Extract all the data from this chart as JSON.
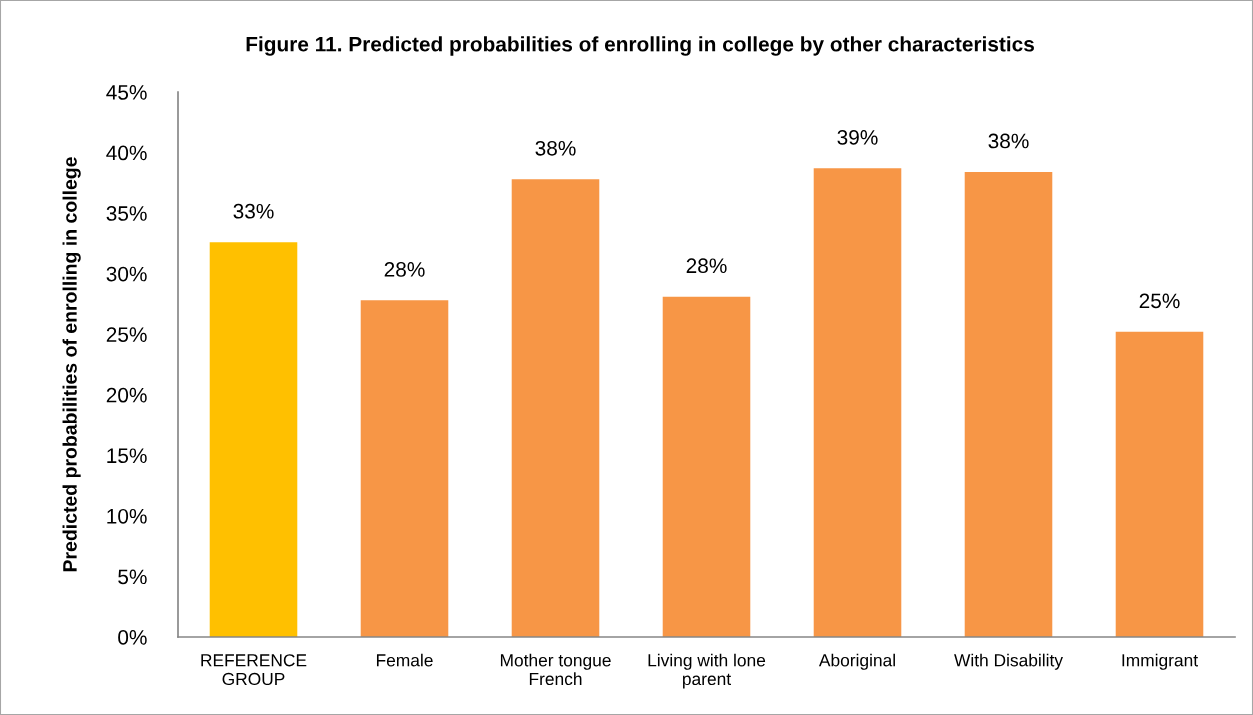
{
  "chart_data": {
    "type": "bar",
    "title": "Figure 11. Predicted probabilities of enrolling in college by other characteristics",
    "ylabel": "Predicted probabilities of enrolling in college",
    "categories": [
      "REFERENCE\nGROUP",
      "Female",
      "Mother tongue\nFrench",
      "Living with lone\nparent",
      "Aboriginal",
      "With Disability",
      "Immigrant"
    ],
    "values": [
      32.6,
      27.8,
      37.8,
      28.1,
      38.7,
      38.4,
      25.2
    ],
    "colors": [
      "#ffc000",
      "#f79646",
      "#f79646",
      "#f79646",
      "#f79646",
      "#f79646",
      "#f79646"
    ],
    "value_labels": [
      "33%",
      "28%",
      "38%",
      "28%",
      "39%",
      "38%",
      "25%"
    ],
    "ylim": [
      0,
      45
    ],
    "yticks": [
      {
        "value": 0,
        "label": "0%"
      },
      {
        "value": 5,
        "label": "5%"
      },
      {
        "value": 10,
        "label": "10%"
      },
      {
        "value": 15,
        "label": "15%"
      },
      {
        "value": 20,
        "label": "20%"
      },
      {
        "value": 25,
        "label": "25%"
      },
      {
        "value": 30,
        "label": "30%"
      },
      {
        "value": 35,
        "label": "35%"
      },
      {
        "value": 40,
        "label": "40%"
      },
      {
        "value": 45,
        "label": "45%"
      }
    ],
    "grid": false,
    "legend": false
  }
}
